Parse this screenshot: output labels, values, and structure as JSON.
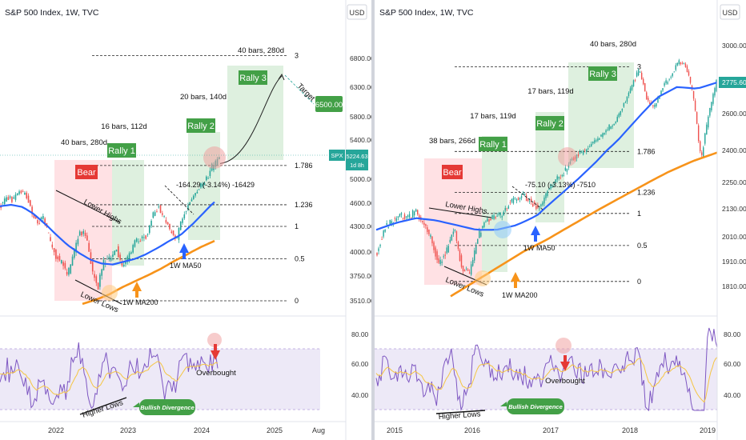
{
  "panels": [
    {
      "title": "S&P 500 Index, 1W, TVC",
      "currency": "USD",
      "price_axis": [
        "6800.00",
        "6300.00",
        "5800.00",
        "5400.00",
        "5000.00",
        "4600.00",
        "4300.00",
        "4000.00",
        "3750.00",
        "3510.00"
      ],
      "rsi_axis": [
        "80.00",
        "60.00",
        "40.00"
      ],
      "time_axis": [
        "2022",
        "2023",
        "2024",
        "2025",
        "Aug"
      ],
      "annotations": {
        "bars_top": "40 bars, 280d",
        "bars_mid": "20 bars, 140d",
        "bars_r2": "16 bars, 112d",
        "bars_r1": "40 bars, 280d",
        "rally1": "Rally 1",
        "rally2": "Rally 2",
        "rally3": "Rally 3",
        "bear": "Bear",
        "target": "Target",
        "target_price": "6500.00",
        "measure": "-164.29 (-3.14%) -16429",
        "lower_highs": "Lower Highs",
        "lower_lows": "Lower Lows",
        "ma50": "1W MA50",
        "ma200": "1W MA200",
        "overbought": "Overbought",
        "higher_lows": "Higher Lows",
        "bullish_div": "Bullish Divergence",
        "fib": [
          "3",
          "1.786",
          "1.236",
          "1",
          "0.5",
          "0"
        ],
        "spx_tag": "SPX",
        "spx_price": "5224.63",
        "spx_time": "1d 8h"
      }
    },
    {
      "title": "S&P 500 Index, 1W, TVC",
      "currency": "USD",
      "price_axis": [
        "3000.00",
        "2775.60",
        "2600.00",
        "2400.00",
        "2250.00",
        "2130.00",
        "2010.00",
        "1910.00",
        "1810.00"
      ],
      "rsi_axis": [
        "80.00",
        "60.00",
        "40.00"
      ],
      "time_axis": [
        "2015",
        "2016",
        "2017",
        "2018",
        "2019"
      ],
      "annotations": {
        "bars_top": "40 bars, 280d",
        "bars_mid": "17 bars, 119d",
        "bars_r2": "17 bars, 119d",
        "bars_r1": "38 bars, 266d",
        "rally1": "Rally 1",
        "rally2": "Rally 2",
        "rally3": "Rally 3",
        "bear": "Bear",
        "measure": "-75.10 (-3.13%) -7510",
        "lower_highs": "Lower Highs",
        "lower_lows": "Lower Lows",
        "ma50": "1W MA50",
        "ma200": "1W MA200",
        "overbought": "Overbought",
        "higher_lows": "Higher Lows",
        "bullish_div": "Bullish Divergence",
        "fib": [
          "3",
          "1.786",
          "1.236",
          "1",
          "0.5",
          "0"
        ],
        "last_price": "2775.60"
      }
    }
  ],
  "colors": {
    "up": "#26a69a",
    "down": "#ef5350",
    "ma50": "#2962ff",
    "ma200": "#f7931a",
    "rsi": "#7e57c2",
    "rsi_ma": "#f5c542",
    "rally_zone": "#c8e6c9",
    "bear_zone": "#ffcdd2",
    "label_green": "#43a047",
    "label_red": "#e53935"
  },
  "chart_data": [
    {
      "type": "candlestick",
      "title": "S&P 500 Index, 1W, TVC",
      "ylabel": "USD",
      "ylim": [
        3510,
        6800
      ],
      "x_ticks": [
        "2022",
        "2023",
        "2024",
        "2025",
        "Aug"
      ],
      "fib_levels": [
        {
          "label": "3",
          "price": 6850
        },
        {
          "label": "1.786",
          "price": 5140
        },
        {
          "label": "1.236",
          "price": 4580
        },
        {
          "label": "1",
          "price": 4300
        },
        {
          "label": "0.5",
          "price": 3930
        },
        {
          "label": "0",
          "price": 3510
        }
      ],
      "close_path": [
        4580,
        4700,
        4650,
        4800,
        4760,
        4500,
        4350,
        4400,
        4150,
        3950,
        3900,
        3750,
        4000,
        4250,
        4200,
        3800,
        3650,
        3900,
        3950,
        4050,
        3850,
        3950,
        4100,
        4150,
        4200,
        4450,
        4550,
        4380,
        4250,
        4150,
        4450,
        4600,
        4750,
        4900,
        5000,
        5150,
        5224.63
      ],
      "ma50_path": [
        4560,
        4580,
        4550,
        4460,
        4330,
        4200,
        4080,
        3990,
        3920,
        3880,
        3870,
        3900,
        3930,
        3980,
        4050,
        4130,
        4200,
        4320,
        4470,
        4620
      ],
      "ma200_path": [
        3480,
        3520,
        3570,
        3640,
        3700,
        3760,
        3830,
        3910,
        3980,
        4060,
        4130
      ],
      "projection_path": [
        5160,
        5700,
        6250,
        6800
      ],
      "target": 6500,
      "last_price": 5224.63,
      "rsi": {
        "ylim": [
          30,
          90
        ],
        "levels": [
          70,
          30
        ]
      }
    },
    {
      "type": "candlestick",
      "title": "S&P 500 Index, 1W, TVC",
      "ylabel": "USD",
      "ylim": [
        1810,
        3000
      ],
      "x_ticks": [
        "2015",
        "2016",
        "2017",
        "2018",
        "2019"
      ],
      "fib_levels": [
        {
          "label": "3",
          "price": 2870
        },
        {
          "label": "1.786",
          "price": 2395
        },
        {
          "label": "1.236",
          "price": 2205
        },
        {
          "label": "1",
          "price": 2110
        },
        {
          "label": "0.5",
          "price": 1975
        },
        {
          "label": "0",
          "price": 1830
        }
      ],
      "close_path": [
        1950,
        2050,
        2080,
        2100,
        2090,
        2120,
        2070,
        2000,
        1900,
        1950,
        2050,
        1880,
        1860,
        2000,
        2080,
        2090,
        2100,
        2150,
        2180,
        2190,
        2160,
        2130,
        2200,
        2260,
        2280,
        2350,
        2380,
        2400,
        2440,
        2480,
        2520,
        2570,
        2650,
        2750,
        2860,
        2680,
        2640,
        2750,
        2800,
        2900,
        2880,
        2700,
        2350,
        2600,
        2775.6
      ],
      "ma50_path": [
        2040,
        2070,
        2090,
        2080,
        2060,
        2040,
        2040,
        2060,
        2100,
        2180,
        2260,
        2350,
        2450,
        2570,
        2690,
        2750,
        2740,
        2775.6
      ],
      "ma200_path": [
        1770,
        1830,
        1890,
        1950,
        2000,
        2060,
        2120,
        2180,
        2240,
        2300,
        2350,
        2390
      ],
      "last_price": 2775.6,
      "rsi": {
        "ylim": [
          30,
          90
        ],
        "levels": [
          70,
          30
        ]
      }
    }
  ]
}
